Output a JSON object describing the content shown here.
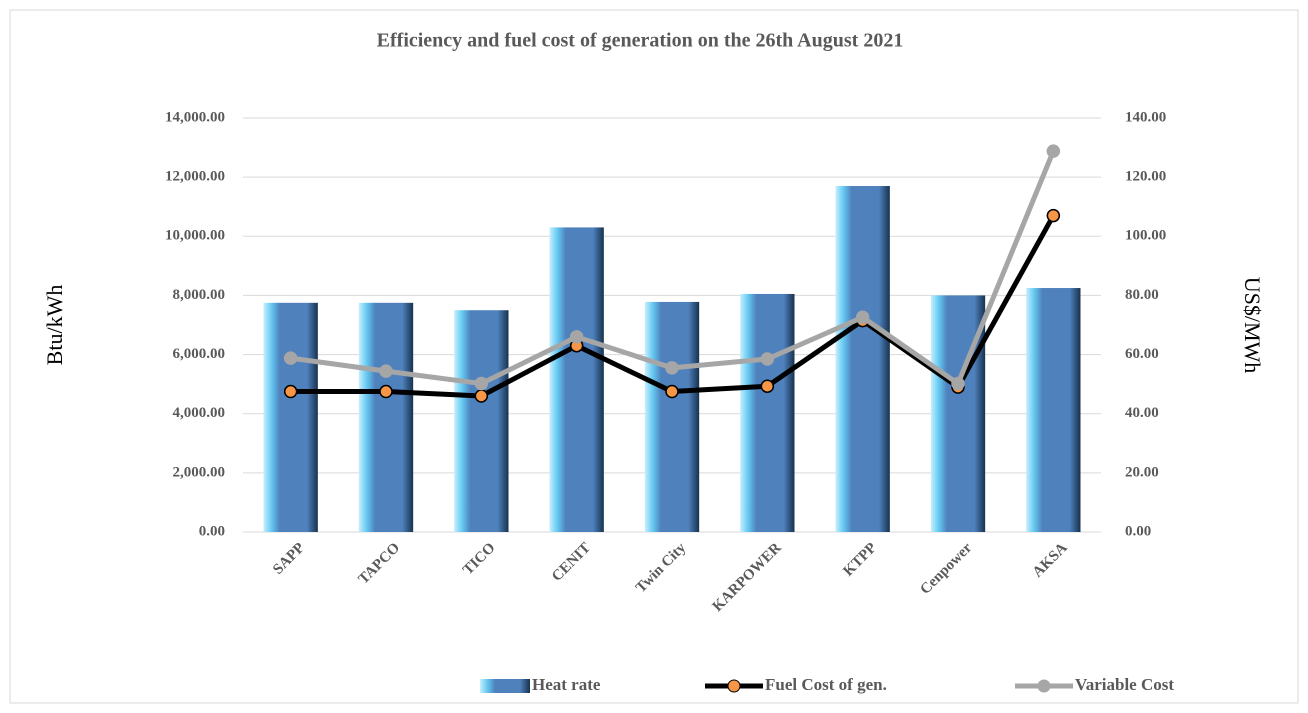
{
  "chart_data": {
    "type": "bar-line",
    "title": "Efficiency and fuel cost of generation on the 26th August 2021",
    "y_label": "Btu/kWh",
    "y2_label": "US$/MWh",
    "categories": [
      "SAPP",
      "TAPCO",
      "TICO",
      "CENIT",
      "Twin City",
      "KARPOWER",
      "KTPP",
      "Cenpower",
      "AKSA"
    ],
    "series": [
      {
        "name": "Heat rate",
        "type": "bar",
        "color": "#4f81bd",
        "values": [
          7750,
          7750,
          7500,
          10300,
          7780,
          8050,
          11700,
          8000,
          8250
        ]
      },
      {
        "name": "Fuel Cost of gen.",
        "type": "line",
        "axis": "y2",
        "color": "#000000",
        "marker_color": "#f79646",
        "values": [
          47.5,
          47.5,
          46,
          63,
          47.5,
          49.3,
          71.5,
          49,
          107
        ]
      },
      {
        "name": "Variable Cost",
        "type": "line",
        "axis": "y2",
        "color": "#a6a6a6",
        "marker_color": "#a6a6a6",
        "values": [
          58.8,
          54.4,
          50.2,
          66,
          55.5,
          58.5,
          72.6,
          50.2,
          128.8
        ]
      }
    ],
    "ylim": [
      0,
      14000
    ],
    "yticks": [
      {
        "value": 0,
        "label": "0.00"
      },
      {
        "value": 2000,
        "label": "2,000.00"
      },
      {
        "value": 4000,
        "label": "4,000.00"
      },
      {
        "value": 6000,
        "label": "6,000.00"
      },
      {
        "value": 8000,
        "label": "8,000.00"
      },
      {
        "value": 10000,
        "label": "10,000.00"
      },
      {
        "value": 12000,
        "label": "12,000.00"
      },
      {
        "value": 14000,
        "label": "14,000.00"
      }
    ],
    "y2lim": [
      0,
      140
    ],
    "y2ticks": [
      {
        "value": 0,
        "label": "0.00"
      },
      {
        "value": 20,
        "label": "20.00"
      },
      {
        "value": 40,
        "label": "40.00"
      },
      {
        "value": 60,
        "label": "60.00"
      },
      {
        "value": 80,
        "label": "80.00"
      },
      {
        "value": 100,
        "label": "100.00"
      },
      {
        "value": 120,
        "label": "120.00"
      },
      {
        "value": 140,
        "label": "140.00"
      }
    ],
    "grid": true,
    "legend": "bottom"
  }
}
